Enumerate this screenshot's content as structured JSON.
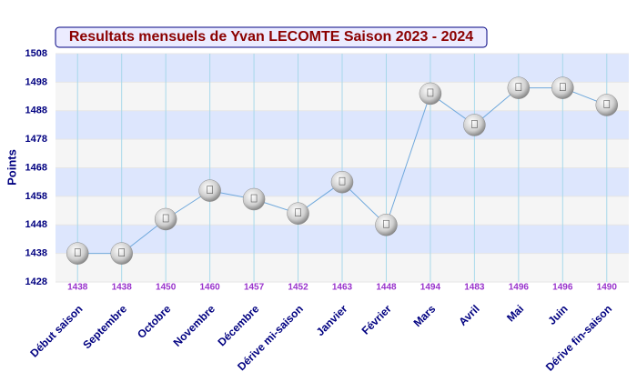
{
  "chart_data": {
    "type": "line",
    "title": "Resultats mensuels de Yvan LECOMTE Saison 2023 - 2024",
    "y_label": "Points",
    "categories": [
      "Début saison",
      "Septembre",
      "Octobre",
      "Novembre",
      "Décembre",
      "Dérive mi-saison",
      "Janvier",
      "Février",
      "Mars",
      "Avril",
      "Mai",
      "Juin",
      "Dérive fin-saison"
    ],
    "series": [
      {
        "name": "Points",
        "color": "#6fa8dc",
        "values": [
          1438,
          1438,
          1450,
          1460,
          1457,
          1452,
          1463,
          1448,
          1494,
          1483,
          1496,
          1496,
          1490
        ]
      }
    ],
    "ylim": [
      1428,
      1508
    ],
    "yticks": [
      1428,
      1438,
      1448,
      1458,
      1468,
      1478,
      1488,
      1498,
      1508
    ],
    "grid": true
  }
}
